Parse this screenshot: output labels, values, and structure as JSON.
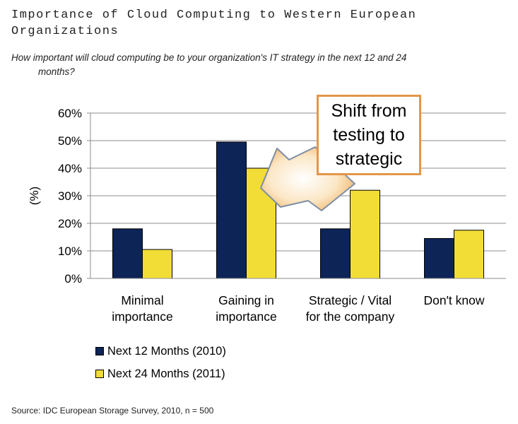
{
  "title": "Importance of Cloud Computing to Western European Organizations",
  "question_line1": "How important will cloud computing be to your organization's IT strategy in the next 12 and",
  "question_line2": "months?",
  "question_24": "24",
  "callout": "Shift from testing to strategic",
  "source": "Source: IDC European Storage Survey, 2010, n = 500",
  "colors": {
    "series1": "#0d2457",
    "series2": "#f2dd36",
    "callout_border": "#e3964a"
  },
  "chart_data": {
    "type": "bar",
    "categories": [
      [
        "Minimal",
        "importance"
      ],
      [
        "Gaining in",
        "importance"
      ],
      [
        "Strategic / Vital",
        "for the company"
      ],
      [
        "Don't know"
      ]
    ],
    "series": [
      {
        "name": "Next 12 Months (2010)",
        "values": [
          18,
          49.5,
          18,
          14.5
        ],
        "color": "#0d2457"
      },
      {
        "name": "Next 24 Months (2011)",
        "values": [
          10.5,
          40,
          32,
          17.5
        ],
        "color": "#f2dd36"
      }
    ],
    "ylabel": "(%)",
    "ylim": [
      0,
      60
    ],
    "yticks": [
      "0%",
      "10%",
      "20%",
      "30%",
      "40%",
      "50%",
      "60%"
    ],
    "grid": true,
    "legend_position": "bottom-left"
  }
}
